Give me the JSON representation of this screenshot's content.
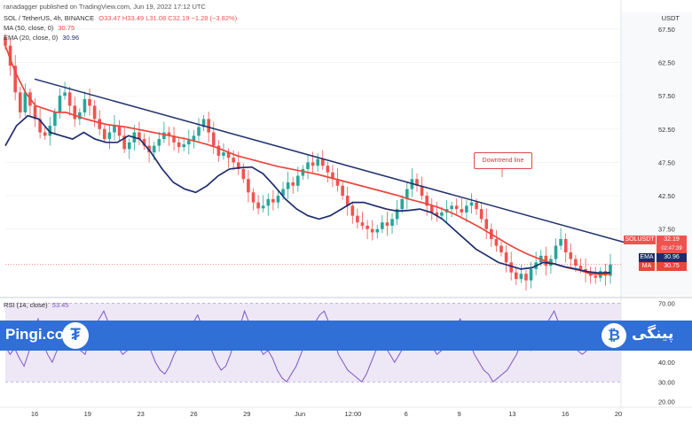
{
  "header": {
    "line0": "ranadagger published on TradingView.com, Jun 19, 2022 17:12 UTC",
    "line1": "SOL / TetherUS, 4h, BINANCE",
    "ohlc": "O33.47 H33.49 L31.08 C32.19 −1.28 (−3.82%)",
    "ma_label": "MA (50, close, 0)",
    "ma_value": "30.75",
    "ema_label": "EMA (20, close, 0)",
    "ema_value": "30.96"
  },
  "rsi": {
    "label": "RSI (14, close)",
    "value": "53.45"
  },
  "branding": {
    "left": "Pingi.co",
    "right": "پینگی",
    "left_icon": "tether-icon",
    "right_icon": "bitcoin-icon"
  },
  "annotation": "Downtrend line",
  "price_tags": {
    "symbol": "SOLUSDT",
    "price": "32.19",
    "countdown": "02:47:39",
    "ema_label": "EMA",
    "ema_value": "30.96",
    "ma_label": "MA",
    "ma_value": "30.75"
  },
  "colors": {
    "up": "#26a69a",
    "down": "#ef5350",
    "ma": "#e8473b",
    "ema": "#1d2c6e",
    "trend": "#21316e",
    "rsi": "#7e57c2",
    "banner": "#2f6fd6"
  },
  "chart_data": {
    "type": "candlestick",
    "currency": "USDT",
    "y_ticks": [
      "67.50",
      "62.50",
      "57.50",
      "52.50",
      "47.50",
      "42.50",
      "37.50",
      "32.19",
      "30.96",
      "30.75"
    ],
    "ylim": [
      27.5,
      70
    ],
    "x_ticks": [
      "16",
      "19",
      "23",
      "26",
      "29",
      "Jun",
      "12:00",
      "6",
      "9",
      "13",
      "16",
      "20"
    ],
    "close_series": [
      65,
      62,
      58,
      55,
      58,
      56,
      54,
      52,
      51.5,
      53,
      55,
      57.5,
      58,
      56,
      54,
      55,
      57,
      56,
      54,
      52.5,
      51,
      52,
      53,
      51.5,
      49.5,
      50.5,
      52,
      51,
      50,
      49,
      50,
      51,
      52,
      51.5,
      50.5,
      49.8,
      50.2,
      50.8,
      51.5,
      52.8,
      54,
      52,
      50,
      48.5,
      49,
      48.2,
      47.5,
      46.5,
      45,
      43,
      41.5,
      40.6,
      41,
      42,
      41.5,
      42.5,
      43.5,
      44.5,
      44,
      45.5,
      46.5,
      47.5,
      47,
      48,
      47,
      46,
      45,
      44,
      42.5,
      41,
      39.5,
      38.5,
      38,
      37.5,
      37,
      37.5,
      38.5,
      38,
      39,
      40.5,
      42,
      43.5,
      45,
      44,
      42.5,
      41,
      40,
      39.5,
      40,
      40.5,
      41,
      40.5,
      40,
      41,
      41.5,
      40.5,
      39,
      37.5,
      36,
      35,
      34,
      32.5,
      31,
      30,
      30.8,
      29.8,
      31.5,
      32.5,
      33.5,
      32,
      33,
      35,
      36,
      34,
      33,
      32,
      31.5,
      31,
      30.5,
      30.2,
      31.2,
      30.5,
      32.19
    ],
    "ma50_series": [
      65,
      61,
      58,
      56,
      55.5,
      55,
      55,
      54.5,
      54,
      53.6,
      53.2,
      53,
      52.8,
      52.5,
      52.2,
      51.9,
      51.6,
      51.3,
      51,
      50.6,
      50.2,
      49.7,
      49.1,
      48.5,
      48.1,
      47.7,
      47.3,
      46.9,
      46.6,
      46.3,
      46,
      45.7,
      45.3,
      44.9,
      44.5,
      44.1,
      43.7,
      43.3,
      42.9,
      42.5,
      42,
      41.6,
      41.2,
      40.7,
      40.1,
      39.4,
      38.6,
      37.8,
      36.9,
      36,
      35.1,
      34.3,
      33.6,
      33,
      32.5,
      32,
      31.6,
      31.3,
      30.8,
      30.7,
      30.75
    ],
    "ema20_series": [
      50,
      53,
      54.5,
      54,
      52,
      51.5,
      51,
      52,
      51,
      50.5,
      50.5,
      51.5,
      51,
      49,
      46.5,
      44.5,
      43.5,
      43,
      44,
      45.5,
      46.5,
      46.7,
      46.8,
      45.8,
      44,
      42,
      40.5,
      39.5,
      39,
      39.5,
      40.5,
      41.5,
      41.5,
      41,
      40.5,
      40.2,
      40.3,
      40.5,
      40,
      39,
      37.5,
      36,
      34.5,
      33.5,
      32.5,
      32,
      31.5,
      31.7,
      32.5,
      32.3,
      31.8,
      31.5,
      31.1,
      30.9,
      30.96
    ],
    "trendline": {
      "start": {
        "x": "16",
        "y": 60
      },
      "end": {
        "x": "20",
        "y": 35.5
      }
    },
    "rsi_levels": [
      "70.00",
      "60.00",
      "50.00",
      "40.00",
      "30.00",
      "20.00"
    ],
    "rsi_range": [
      18,
      72
    ],
    "rsi_bands": [
      30,
      70
    ],
    "rsi_series": [
      48,
      44,
      47,
      42,
      38,
      45,
      56,
      62,
      50,
      44,
      40,
      46,
      50,
      58,
      55,
      48,
      46,
      44,
      52,
      58,
      62,
      66,
      60,
      54,
      48,
      44,
      46,
      52,
      56,
      58,
      54,
      46,
      40,
      36,
      34,
      38,
      44,
      48,
      52,
      56,
      60,
      64,
      58,
      54,
      46,
      40,
      36,
      38,
      44,
      52,
      58,
      66,
      60,
      54,
      48,
      44,
      46,
      42,
      36,
      32,
      30,
      34,
      38,
      44,
      50,
      56,
      60,
      64,
      66,
      60,
      52,
      44,
      40,
      36,
      34,
      32,
      30,
      34,
      40,
      46,
      52,
      48,
      44,
      40,
      44,
      48,
      52,
      56,
      60,
      56,
      52,
      48,
      44,
      46,
      50,
      54,
      58,
      62,
      56,
      50,
      44,
      40,
      36,
      34,
      30,
      32,
      34,
      36,
      40,
      44,
      50,
      48,
      46,
      52,
      56,
      58,
      62,
      66,
      60,
      54,
      50,
      48,
      46,
      44,
      46,
      48,
      50,
      52,
      54,
      53.45
    ]
  }
}
